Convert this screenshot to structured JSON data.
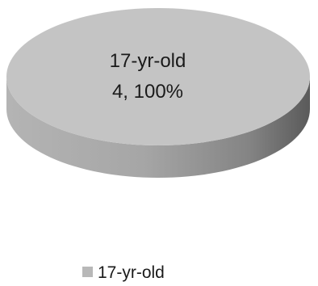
{
  "chart_data": {
    "type": "pie",
    "three_d": true,
    "slices": [
      {
        "label": "17-yr-old",
        "value": 4,
        "percent": "100%"
      }
    ],
    "data_label_line1": "17-yr-old",
    "data_label_line2": "4, 100%",
    "legend": {
      "placement": "bottom",
      "entries": [
        "17-yr-old"
      ]
    },
    "colors": {
      "top": "#c4c4c4",
      "side_light": "#b0b0b0",
      "side_dark": "#5f5f5f",
      "legend_swatch": "#b8b8b8"
    }
  }
}
